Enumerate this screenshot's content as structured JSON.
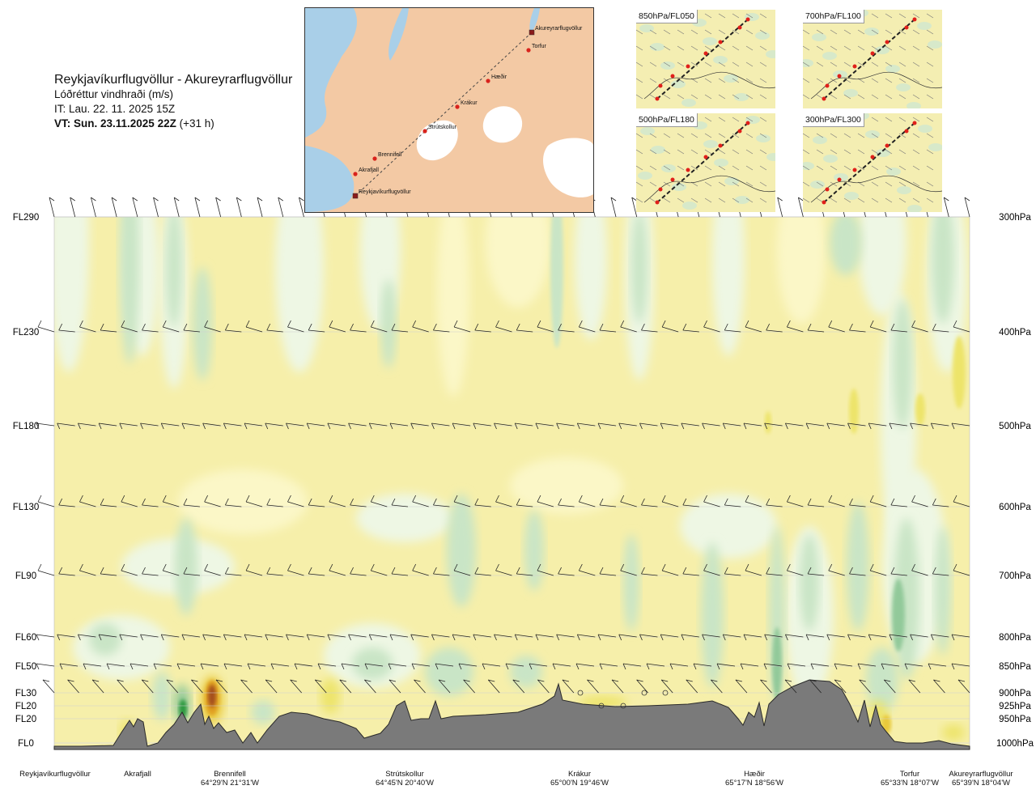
{
  "header": {
    "route": "Reykjavíkurflugvöllur - Akureyrarflugvöllur",
    "variable": "Lóðréttur vindhraði (m/s)",
    "issue_time": "IT: Lau. 22. 11. 2025 15Z",
    "valid_time_bold": "VT: Sun. 23.11.2025 22Z",
    "valid_time_offset": " (+31 h)"
  },
  "map": {
    "water_color": "#a9cfe8",
    "land_color": "#f3c9a4",
    "route_color": "#d9221c",
    "waypoints": [
      {
        "name": "Akureyrarflugvöllur"
      },
      {
        "name": "Torfur"
      },
      {
        "name": "Hæðir"
      },
      {
        "name": "Krákur"
      },
      {
        "name": "Strútskollur"
      },
      {
        "name": "Brennifell"
      },
      {
        "name": "Akrafjall"
      },
      {
        "name": "Reykjavíkurflugvöllur"
      }
    ]
  },
  "minimaps": [
    {
      "label": "850hPa/FL050"
    },
    {
      "label": "700hPa/FL100"
    },
    {
      "label": "500hPa/FL180"
    },
    {
      "label": "300hPa/FL300"
    }
  ],
  "colors": {
    "sink_light": "#fbf7c7",
    "sink": "#f6efaa",
    "sink_strong": "#ede46a",
    "sink_stronger": "#e9c93a",
    "sink_orange": "#e0a020",
    "sink_brown": "#a5501d",
    "rise_light": "#eef7e4",
    "rise": "#c9e5c6",
    "rise_strong": "#92c99a",
    "rise_stronger": "#2e9a3f",
    "terrain": "#7a7a7a"
  },
  "chart_data": {
    "type": "heatmap",
    "title": "Lóðréttur vindhraði (m/s)",
    "flight_levels": [
      {
        "fl": "FL290",
        "hpa": "300hPa"
      },
      {
        "fl": "FL230",
        "hpa": "400hPa"
      },
      {
        "fl": "FL180",
        "hpa": "500hPa"
      },
      {
        "fl": "FL130",
        "hpa": "600hPa"
      },
      {
        "fl": "FL90",
        "hpa": "700hPa"
      },
      {
        "fl": "FL60",
        "hpa": "800hPa"
      },
      {
        "fl": "FL50",
        "hpa": "850hPa"
      },
      {
        "fl": "FL30",
        "hpa": "900hPa"
      },
      {
        "fl": "FL20",
        "hpa": "925hPa"
      },
      {
        "fl": "FL20",
        "hpa": "950hPa"
      },
      {
        "fl": "FL0",
        "hpa": "1000hPa"
      }
    ],
    "locations": [
      {
        "name": "Reykjavíkurflugvöllur",
        "coord": ""
      },
      {
        "name": "Akrafjall",
        "coord": ""
      },
      {
        "name": "Brennifell",
        "coord": "64°29'N 21°31'W"
      },
      {
        "name": "Strútskollur",
        "coord": "64°45'N 20°40'W"
      },
      {
        "name": "Krákur",
        "coord": "65°00'N 19°46'W"
      },
      {
        "name": "Hæðir",
        "coord": "65°17'N 18°56'W"
      },
      {
        "name": "Torfur",
        "coord": "65°33'N 18°07'W"
      },
      {
        "name": "Akureyrarflugvöllur",
        "coord": "65°39'N 18°04'W"
      }
    ]
  }
}
